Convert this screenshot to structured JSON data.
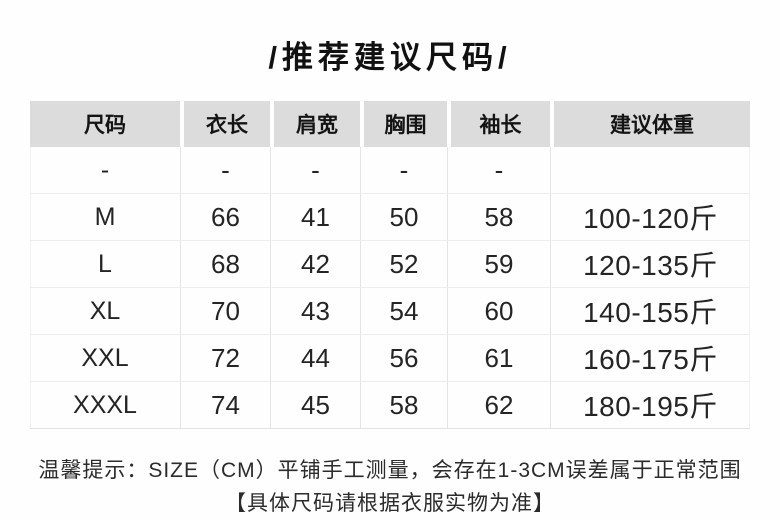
{
  "page": {
    "title": "/推荐建议尺码/"
  },
  "table": {
    "headers": [
      "尺码",
      "衣长",
      "肩宽",
      "胸围",
      "袖长",
      "建议体重"
    ],
    "rows": [
      [
        "-",
        "-",
        "-",
        "-",
        "-",
        ""
      ],
      [
        "M",
        "66",
        "41",
        "50",
        "58",
        "100-120斤"
      ],
      [
        "L",
        "68",
        "42",
        "52",
        "59",
        "120-135斤"
      ],
      [
        "XL",
        "70",
        "43",
        "54",
        "60",
        "140-155斤"
      ],
      [
        "XXL",
        "72",
        "44",
        "56",
        "61",
        "160-175斤"
      ],
      [
        "XXXL",
        "74",
        "45",
        "58",
        "62",
        "180-195斤"
      ]
    ],
    "unit_note": "CM"
  },
  "footer": {
    "line1": "温馨提示：SIZE（CM）平铺手工测量，会存在1-3CM误差属于正常范围",
    "line2": "【具体尺码请根据衣服实物为准】"
  },
  "colors": {
    "header_bg": "#dcdcdc",
    "grid_line": "#e4e4e4",
    "text": "#1d1d1d"
  }
}
